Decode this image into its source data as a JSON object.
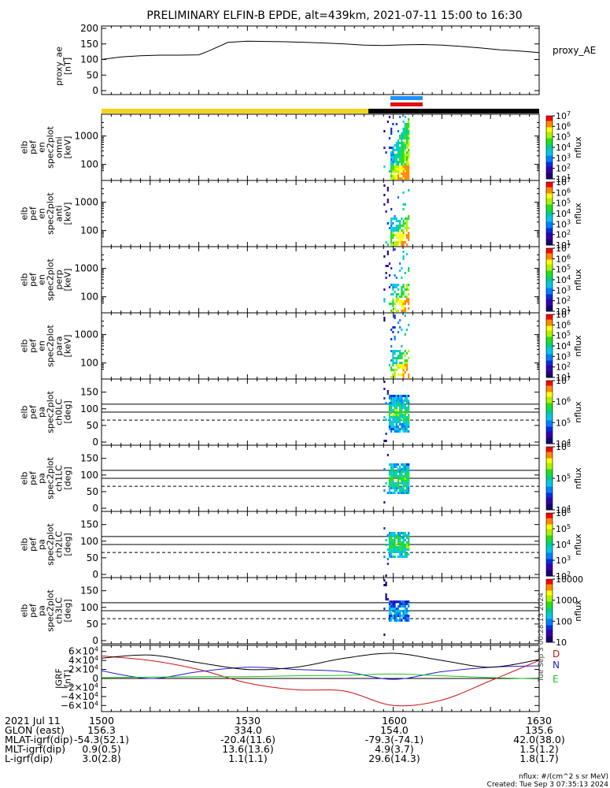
{
  "title": "PRELIMINARY ELFIN-B EPDE, alt=439km, 2021-07-11 15:00 to 16:30",
  "footer": {
    "header": "2021 Jul 11",
    "times": [
      "1500",
      "1530",
      "1600",
      "1630"
    ],
    "rows": [
      {
        "label": "GLON (east)",
        "values": [
          "156.3",
          "334.0",
          "154.0",
          "135.6"
        ]
      },
      {
        "label": "MLAT-igrf(dip)",
        "values": [
          "-54.3(52.1)",
          "-20.4(11.6)",
          "-79.3(-74.1)",
          "42.0(38.0)"
        ]
      },
      {
        "label": "MLT-igrf(dip)",
        "values": [
          "0.9(0.5)",
          "13.6(13.6)",
          "4.9(3.7)",
          "1.5(1.2)"
        ]
      },
      {
        "label": "L-igrf(dip)",
        "values": [
          "3.0(2.8)",
          "1.1(1.1)",
          "29.6(14.3)",
          "1.8(1.7)"
        ]
      }
    ],
    "units_note": "nflux: #/(cm^2 s sr MeV)",
    "created": "Created: Tue Sep  3 07:35:13 2024",
    "side_stamp": "Tue Sep  3 00:28:13 2024"
  },
  "colors": {
    "sunlight_bar": "#f2d41b",
    "shadow_bar": "#000000",
    "sci_blue": "#1e90ff",
    "sci_red": "#e01010",
    "D": "#d01010",
    "N": "#1f1fd0",
    "E": "#20c020"
  },
  "chart_data": [
    {
      "type": "line",
      "panel": "proxy_ae",
      "ylabel": [
        "proxy_ae",
        "[nT]"
      ],
      "series_name": "proxy_AE",
      "ylim": [
        0,
        200
      ],
      "yticks": [
        "0",
        "50",
        "100",
        "150",
        "200"
      ],
      "x": [
        "15:00",
        "15:04",
        "15:08",
        "15:12",
        "15:16",
        "15:20",
        "15:22",
        "15:26",
        "15:30",
        "15:34",
        "15:38",
        "15:42",
        "15:46",
        "15:50",
        "15:54",
        "15:58",
        "16:02",
        "16:06",
        "16:10",
        "16:14",
        "16:18",
        "16:22",
        "16:26",
        "16:30"
      ],
      "values": [
        100,
        108,
        112,
        114,
        114,
        115,
        127,
        155,
        159,
        158,
        157,
        155,
        153,
        150,
        146,
        145,
        147,
        148,
        146,
        142,
        137,
        131,
        127,
        122
      ]
    },
    {
      "type": "heatmap",
      "panel": "omni",
      "ylabel": [
        "elb",
        "pef",
        "en",
        "spec2plot",
        "omni",
        "[keV]"
      ],
      "yscale": "log",
      "yticks": [
        "100",
        "1000"
      ],
      "colorbar": {
        "label": "nflux",
        "ticks": [
          "10^1",
          "10^2",
          "10^3",
          "10^4",
          "10^5",
          "10^6",
          "10^7"
        ]
      },
      "active_time": [
        "15:58",
        "16:03"
      ]
    },
    {
      "type": "heatmap",
      "panel": "anti",
      "ylabel": [
        "elb",
        "pef",
        "en",
        "spec2plot",
        "anti",
        "[keV]"
      ],
      "yscale": "log",
      "yticks": [
        "100",
        "1000"
      ],
      "colorbar": {
        "label": "nflux",
        "ticks": [
          "10^1",
          "10^2",
          "10^3",
          "10^4",
          "10^5",
          "10^6",
          "10^7"
        ]
      },
      "active_time": [
        "15:58",
        "16:03"
      ]
    },
    {
      "type": "heatmap",
      "panel": "perp",
      "ylabel": [
        "elb",
        "pef",
        "en",
        "spec2plot",
        "perp",
        "[keV]"
      ],
      "yscale": "log",
      "yticks": [
        "100",
        "1000"
      ],
      "colorbar": {
        "label": "nflux",
        "ticks": [
          "10^1",
          "10^2",
          "10^3",
          "10^4",
          "10^5",
          "10^6",
          "10^7"
        ]
      },
      "active_time": [
        "15:58",
        "16:03"
      ]
    },
    {
      "type": "heatmap",
      "panel": "para",
      "ylabel": [
        "elb",
        "pef",
        "en",
        "spec2plot",
        "para",
        "[keV]"
      ],
      "yscale": "log",
      "yticks": [
        "100",
        "1000"
      ],
      "colorbar": {
        "label": "nflux",
        "ticks": [
          "10^1",
          "10^2",
          "10^3",
          "10^4",
          "10^5",
          "10^6",
          "10^7"
        ]
      },
      "active_time": [
        "15:58",
        "16:03"
      ]
    },
    {
      "type": "heatmap",
      "panel": "ch0LC",
      "ylabel": [
        "elb",
        "pef",
        "pa",
        "spec2plot",
        "ch0LC",
        "[deg]"
      ],
      "ylim": [
        0,
        180
      ],
      "yticks": [
        "0",
        "50",
        "100",
        "150"
      ],
      "reference_lines": {
        "solid": [
          90,
          114
        ],
        "dashed": [
          66
        ]
      },
      "colorbar": {
        "label": "nflux",
        "ticks": [
          "10^4",
          "10^5",
          "10^6",
          "10^7"
        ]
      },
      "active_time": [
        "15:58",
        "16:03"
      ]
    },
    {
      "type": "heatmap",
      "panel": "ch1LC",
      "ylabel": [
        "elb",
        "pef",
        "pa",
        "spec2plot",
        "ch1LC",
        "[deg]"
      ],
      "ylim": [
        0,
        180
      ],
      "yticks": [
        "0",
        "50",
        "100",
        "150"
      ],
      "reference_lines": {
        "solid": [
          90,
          114
        ],
        "dashed": [
          66
        ]
      },
      "colorbar": {
        "label": "nflux",
        "ticks": [
          "10^4",
          "10^5",
          "10^6"
        ]
      },
      "active_time": [
        "15:58",
        "16:03"
      ]
    },
    {
      "type": "heatmap",
      "panel": "ch2LC",
      "ylabel": [
        "elb",
        "pef",
        "pa",
        "spec2plot",
        "ch2LC",
        "[deg]"
      ],
      "ylim": [
        0,
        180
      ],
      "yticks": [
        "0",
        "50",
        "100",
        "150"
      ],
      "reference_lines": {
        "solid": [
          90,
          114
        ],
        "dashed": [
          66
        ]
      },
      "colorbar": {
        "label": "nflux",
        "ticks": [
          "10^2",
          "10^3",
          "10^4",
          "10^5",
          "10^6"
        ]
      },
      "active_time": [
        "15:58",
        "16:03"
      ]
    },
    {
      "type": "heatmap",
      "panel": "ch3LC",
      "ylabel": [
        "elb",
        "pef",
        "pa",
        "spec2plot",
        "ch3LC",
        "[deg]"
      ],
      "ylim": [
        0,
        180
      ],
      "yticks": [
        "0",
        "50",
        "100",
        "150"
      ],
      "reference_lines": {
        "solid": [
          90,
          114
        ],
        "dashed": [
          66
        ]
      },
      "colorbar": {
        "label": "nflux",
        "ticks": [
          "10",
          "100",
          "1000",
          "10000"
        ]
      },
      "active_time": [
        "15:58",
        "16:03"
      ]
    },
    {
      "type": "line",
      "panel": "IGRF",
      "ylabel": [
        "IGRF",
        "[nT]"
      ],
      "ylim": [
        -70000,
        70000
      ],
      "yticks": [
        "6×10^4",
        "4×10^4",
        "2×10^4",
        "0",
        "−2×10^4",
        "−4×10^4",
        "−6×10^4"
      ],
      "legend": [
        "D",
        "N",
        "E"
      ],
      "x_minutes": [
        0,
        10,
        20,
        30,
        40,
        50,
        60,
        70,
        80,
        90
      ],
      "series": [
        {
          "name": "D",
          "values": [
            50000,
            40000,
            20000,
            -10000,
            -25000,
            -28000,
            -60000,
            -48000,
            -5000,
            40000
          ]
        },
        {
          "name": "N",
          "values": [
            17000,
            0,
            15000,
            25000,
            20000,
            15000,
            -2000,
            15000,
            25000,
            28000
          ]
        },
        {
          "name": "E",
          "values": [
            2000,
            3000,
            4000,
            4000,
            6000,
            7000,
            10000,
            6000,
            2000,
            -1000
          ]
        },
        {
          "name": "B",
          "values": [
            45000,
            52000,
            35000,
            20000,
            25000,
            45000,
            56000,
            40000,
            25000,
            42000
          ]
        }
      ]
    }
  ]
}
